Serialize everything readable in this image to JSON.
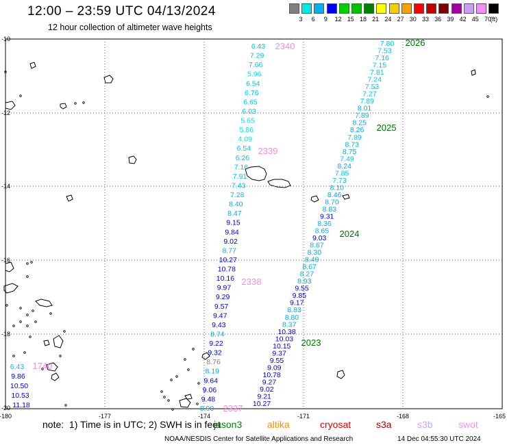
{
  "title": "12:00 – 23:59 UTC 04/13/2024",
  "subtitle": "12 hour collection of altimeter wave heights",
  "colorbar": {
    "colors": [
      "#808080",
      "#00e8e8",
      "#00b0f0",
      "#0000f0",
      "#00d000",
      "#00c000",
      "#008000",
      "#ffff00",
      "#f0d000",
      "#ffa000",
      "#ff0000",
      "#c00000",
      "#800000",
      "#a000a0",
      "#c8a0f0",
      "#f090f0",
      "#000000"
    ],
    "labels": [
      "3",
      "6",
      "9",
      "12",
      "15",
      "18",
      "21",
      "24",
      "27",
      "30",
      "33",
      "36",
      "39",
      "42",
      "45",
      "70"
    ],
    "unit": "(ft)"
  },
  "axes": {
    "x_ticks": [
      "-180",
      "-177",
      "-174",
      "-171",
      "-168",
      "-165"
    ],
    "y_ticks": [
      "-10",
      "-12",
      "-14",
      "-16",
      "-18",
      "-20"
    ]
  },
  "passes": [
    {
      "id": "2340",
      "color": "#f08cdc"
    },
    {
      "id": "2339",
      "color": "#f08cdc"
    },
    {
      "id": "2338",
      "color": "#f08cdc"
    },
    {
      "id": "2337",
      "color": "#f08cdc"
    },
    {
      "id": "1740",
      "color": "#f08cdc"
    },
    {
      "id": "2026",
      "color": "#007000"
    },
    {
      "id": "2025",
      "color": "#007000"
    },
    {
      "id": "2024",
      "color": "#007000"
    },
    {
      "id": "2023",
      "color": "#007000"
    }
  ],
  "tracks": {
    "west": [
      [
        "6.43",
        "#00c0e0"
      ],
      [
        "7.29",
        "#00c0e0"
      ],
      [
        "7.66",
        "#00c0e0"
      ],
      [
        "5.96",
        "#00e0e8"
      ],
      [
        "6.54",
        "#00c0e0"
      ],
      [
        "6.76",
        "#00c0e0"
      ],
      [
        "6.65",
        "#00c0e0"
      ],
      [
        "6.03",
        "#00c0e0"
      ],
      [
        "5.65",
        "#00e0e8"
      ],
      [
        "5.86",
        "#00e0e8"
      ],
      [
        "4.09",
        "#00e0e8"
      ],
      [
        "6.54",
        "#00c0e0"
      ],
      [
        "6.26",
        "#00c0e0"
      ],
      [
        "7.16",
        "#00c0e0"
      ],
      [
        "7.91",
        "#00c0e0"
      ],
      [
        "7.43",
        "#00c0e0"
      ],
      [
        "7.28",
        "#00c0e0"
      ],
      [
        "8.40",
        "#00a8e0"
      ],
      [
        "8.47",
        "#00a8e0"
      ],
      [
        "9.15",
        "#0000c8"
      ],
      [
        "9.84",
        "#0000c8"
      ],
      [
        "9.02",
        "#0000c8"
      ],
      [
        "8.77",
        "#00a8e0"
      ],
      [
        "10.27",
        "#0000c8"
      ],
      [
        "10.78",
        "#0000c8"
      ],
      [
        "10.16",
        "#0000c8"
      ],
      [
        "9.97",
        "#0000c8"
      ],
      [
        "9.29",
        "#0000c8"
      ],
      [
        "9.57",
        "#0000c8"
      ],
      [
        "9.47",
        "#0000c8"
      ],
      [
        "9.43",
        "#0000c8"
      ],
      [
        "8.74",
        "#00a8e0"
      ],
      [
        "9.22",
        "#0000c8"
      ],
      [
        "9.32",
        "#0000c8"
      ],
      [
        "8.76",
        "#808080"
      ],
      [
        "8.19",
        "#00a8e0"
      ],
      [
        "9.64",
        "#0000c8"
      ],
      [
        "9.06",
        "#0000c8"
      ],
      [
        "9.48",
        "#0000c8"
      ],
      [
        "8.90",
        "#00a8e0"
      ]
    ],
    "east": [
      [
        "7.80",
        "#00c0e0"
      ],
      [
        "7.53",
        "#00c0e0"
      ],
      [
        "7.16",
        "#00c0e0"
      ],
      [
        "7.15",
        "#00c0e0"
      ],
      [
        "7.81",
        "#00c0e0"
      ],
      [
        "7.24",
        "#00c0e0"
      ],
      [
        "7.53",
        "#00c0e0"
      ],
      [
        "7.27",
        "#00c0e0"
      ],
      [
        "7.89",
        "#00c0e0"
      ],
      [
        "8.01",
        "#00a8e0"
      ],
      [
        "7.89",
        "#00c0e0"
      ],
      [
        "8.25",
        "#00a8e0"
      ],
      [
        "8.26",
        "#00a8e0"
      ],
      [
        "7.89",
        "#00c0e0"
      ],
      [
        "8.73",
        "#00a8e0"
      ],
      [
        "8.75",
        "#00a8e0"
      ],
      [
        "7.49",
        "#00c0e0"
      ],
      [
        "8.24",
        "#00a8e0"
      ],
      [
        "7.85",
        "#00c0e0"
      ],
      [
        "7.73",
        "#00c0e0"
      ],
      [
        "8.10",
        "#00a8e0"
      ],
      [
        "8.46",
        "#00a8e0"
      ],
      [
        "8.70",
        "#00a8e0"
      ],
      [
        "8.83",
        "#00a8e0"
      ],
      [
        "9.31",
        "#0000c8"
      ],
      [
        "8.36",
        "#00a8e0"
      ],
      [
        "8.65",
        "#00a8e0"
      ],
      [
        "9.03",
        "#0000c8"
      ],
      [
        "8.67",
        "#00a8e0"
      ],
      [
        "8.30",
        "#00a8e0"
      ],
      [
        "8.49",
        "#00a8e0"
      ],
      [
        "8.67",
        "#00a8e0"
      ],
      [
        "8.27",
        "#00a8e0"
      ],
      [
        "8.93",
        "#00a8e0"
      ],
      [
        "9.55",
        "#0000c8"
      ],
      [
        "9.85",
        "#0000c8"
      ],
      [
        "9.17",
        "#0000c8"
      ],
      [
        "8.83",
        "#00a8e0"
      ],
      [
        "8.80",
        "#00a8e0"
      ],
      [
        "8.37",
        "#00a8e0"
      ],
      [
        "10.38",
        "#0000c8"
      ],
      [
        "10.03",
        "#0000c8"
      ],
      [
        "10.15",
        "#0000c8"
      ],
      [
        "9.37",
        "#0000c8"
      ],
      [
        "9.55",
        "#0000c8"
      ],
      [
        "9.09",
        "#0000c8"
      ],
      [
        "10.78",
        "#0000c8"
      ],
      [
        "9.27",
        "#0000c8"
      ],
      [
        "9.02",
        "#0000c8"
      ],
      [
        "9.21",
        "#0000c8"
      ],
      [
        "10.27",
        "#0000c8"
      ]
    ],
    "far_west": [
      [
        "6.43",
        "#00c0e0"
      ],
      [
        "9.86",
        "#0000c8"
      ],
      [
        "10.50",
        "#0000c8"
      ],
      [
        "10.53",
        "#0000c8"
      ],
      [
        "11.18",
        "#0000c8"
      ]
    ]
  },
  "note": "note:  1) Time is in UTC; 2) SWH is in feet",
  "satellites": [
    {
      "name": "jason3",
      "color": "#008000"
    },
    {
      "name": "altika",
      "color": "#f09000"
    },
    {
      "name": "cryosat",
      "color": "#e00000"
    },
    {
      "name": "s3a",
      "color": "#a00000"
    },
    {
      "name": "s3b",
      "color": "#c8a0f0"
    },
    {
      "name": "swot",
      "color": "#f090f0"
    }
  ],
  "footer": "NOAA/NESDIS Center for Satellite Applications and Research",
  "footer_date": "14 Dec 04:55:30 UTC 2024"
}
